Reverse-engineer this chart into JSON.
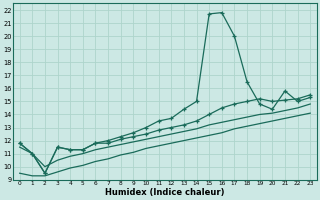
{
  "xlabel": "Humidex (Indice chaleur)",
  "bg_color": "#cce8e4",
  "grid_color": "#aed4cc",
  "line_color": "#1a6b5a",
  "xlim": [
    -0.5,
    23.5
  ],
  "ylim": [
    9,
    22.5
  ],
  "xticks": [
    0,
    1,
    2,
    3,
    4,
    5,
    6,
    7,
    8,
    9,
    10,
    11,
    12,
    13,
    14,
    15,
    16,
    17,
    18,
    19,
    20,
    21,
    22,
    23
  ],
  "yticks": [
    9,
    10,
    11,
    12,
    13,
    14,
    15,
    16,
    17,
    18,
    19,
    20,
    21,
    22
  ],
  "line1_x": [
    0,
    1,
    2,
    3,
    4,
    5,
    6,
    7,
    8,
    9,
    10,
    11,
    12,
    13,
    14,
    15,
    16,
    17,
    18,
    19,
    20,
    21,
    22,
    23
  ],
  "line1_y": [
    11.8,
    11.0,
    9.5,
    11.5,
    11.3,
    11.3,
    11.8,
    12.0,
    12.3,
    12.6,
    13.0,
    13.5,
    13.7,
    14.4,
    15.0,
    21.7,
    21.8,
    20.0,
    16.5,
    14.8,
    14.4,
    15.8,
    15.0,
    15.3
  ],
  "line2_x": [
    0,
    1,
    2,
    3,
    4,
    5,
    6,
    7,
    8,
    9,
    10,
    11,
    12,
    13,
    14,
    15,
    16,
    17,
    18,
    19,
    20,
    21,
    22,
    23
  ],
  "line2_y": [
    11.8,
    11.0,
    9.5,
    11.5,
    11.3,
    11.3,
    11.8,
    11.8,
    12.1,
    12.3,
    12.5,
    12.8,
    13.0,
    13.2,
    13.5,
    14.0,
    14.5,
    14.8,
    15.0,
    15.2,
    15.0,
    15.1,
    15.2,
    15.5
  ],
  "line3_x": [
    0,
    1,
    2,
    3,
    4,
    5,
    6,
    7,
    8,
    9,
    10,
    11,
    12,
    13,
    14,
    15,
    16,
    17,
    18,
    19,
    20,
    21,
    22,
    23
  ],
  "line3_y": [
    11.5,
    11.0,
    10.0,
    10.5,
    10.8,
    11.0,
    11.3,
    11.5,
    11.7,
    11.9,
    12.1,
    12.3,
    12.5,
    12.7,
    12.9,
    13.2,
    13.4,
    13.6,
    13.8,
    14.0,
    14.1,
    14.3,
    14.5,
    14.8
  ],
  "line4_x": [
    0,
    1,
    2,
    3,
    4,
    5,
    6,
    7,
    8,
    9,
    10,
    11,
    12,
    13,
    14,
    15,
    16,
    17,
    18,
    19,
    20,
    21,
    22,
    23
  ],
  "line4_y": [
    9.5,
    9.3,
    9.3,
    9.6,
    9.9,
    10.1,
    10.4,
    10.6,
    10.9,
    11.1,
    11.4,
    11.6,
    11.8,
    12.0,
    12.2,
    12.4,
    12.6,
    12.9,
    13.1,
    13.3,
    13.5,
    13.7,
    13.9,
    14.1
  ]
}
